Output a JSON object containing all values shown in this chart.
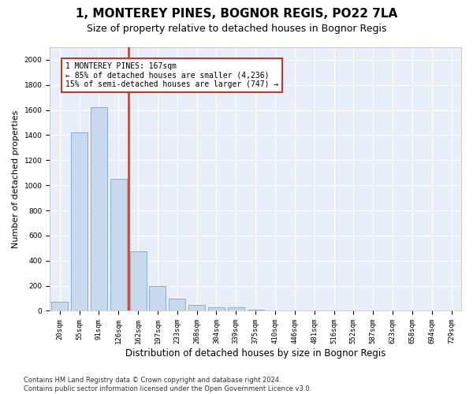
{
  "title": "1, MONTEREY PINES, BOGNOR REGIS, PO22 7LA",
  "subtitle": "Size of property relative to detached houses in Bognor Regis",
  "xlabel": "Distribution of detached houses by size in Bognor Regis",
  "ylabel": "Number of detached properties",
  "categories": [
    "20sqm",
    "55sqm",
    "91sqm",
    "126sqm",
    "162sqm",
    "197sqm",
    "233sqm",
    "268sqm",
    "304sqm",
    "339sqm",
    "375sqm",
    "410sqm",
    "446sqm",
    "481sqm",
    "516sqm",
    "552sqm",
    "587sqm",
    "623sqm",
    "658sqm",
    "694sqm",
    "729sqm"
  ],
  "values": [
    75,
    1425,
    1625,
    1050,
    475,
    200,
    100,
    50,
    30,
    30,
    10,
    5,
    0,
    0,
    0,
    0,
    0,
    0,
    0,
    0,
    0
  ],
  "bar_color": "#c9d9ed",
  "bar_edge_color": "#7aa6cc",
  "vline_color": "#c0392b",
  "annotation_line1": "1 MONTEREY PINES: 167sqm",
  "annotation_line2": "← 85% of detached houses are smaller (4,236)",
  "annotation_line3": "15% of semi-detached houses are larger (747) →",
  "annotation_box_edgecolor": "#c0392b",
  "ylim_max": 2100,
  "yticks": [
    0,
    200,
    400,
    600,
    800,
    1000,
    1200,
    1400,
    1600,
    1800,
    2000
  ],
  "plot_bg_color": "#e8eef8",
  "grid_color": "#ffffff",
  "footer_text": "Contains HM Land Registry data © Crown copyright and database right 2024.\nContains public sector information licensed under the Open Government Licence v3.0.",
  "title_fontsize": 11,
  "subtitle_fontsize": 9,
  "xlabel_fontsize": 8.5,
  "ylabel_fontsize": 8,
  "tick_fontsize": 6.5,
  "annotation_fontsize": 7,
  "footer_fontsize": 6
}
